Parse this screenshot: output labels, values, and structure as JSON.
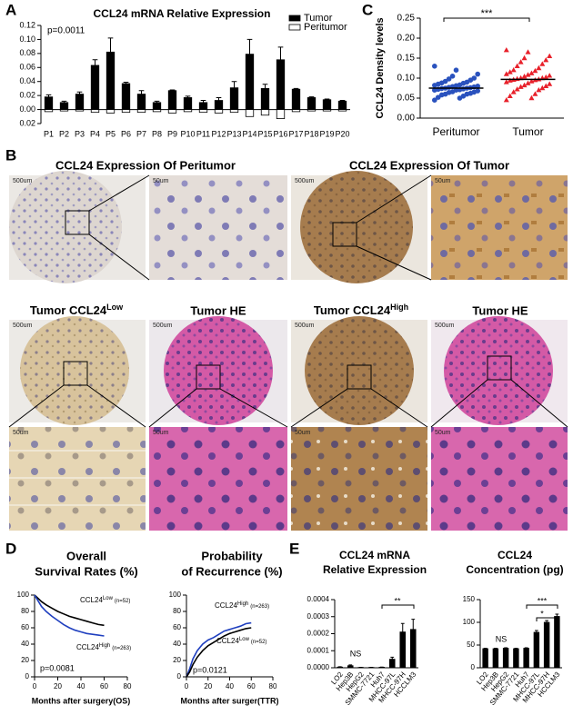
{
  "figure": {
    "panel_labels": [
      "A",
      "B",
      "C",
      "D",
      "E"
    ]
  },
  "histology": {
    "titles": [
      "CCL24 Expression Of Peritumor",
      "CCL24 Expression Of Tumor",
      {
        "text": "Tumor CCL24",
        "sup": "Low"
      },
      "Tumor HE",
      {
        "text": "Tumor CCL24",
        "sup": "High"
      },
      "Tumor HE"
    ],
    "scale_large": "500um",
    "scale_small": "50um"
  },
  "chart_data": [
    {
      "type": "bar",
      "title": "CCL24 mRNA Relative Expression",
      "annotations": [
        "p=0.0011"
      ],
      "categories": [
        "P1",
        "P2",
        "P3",
        "P4",
        "P5",
        "P6",
        "P7",
        "P8",
        "P9",
        "P10",
        "P11",
        "P12",
        "P13",
        "P14",
        "P15",
        "P16",
        "P17",
        "P18",
        "P19",
        "P20"
      ],
      "series": [
        {
          "name": "Tumor",
          "color": "#000000",
          "values": [
            0.018,
            0.01,
            0.022,
            0.063,
            0.082,
            0.037,
            0.022,
            0.01,
            0.027,
            0.017,
            0.01,
            0.013,
            0.031,
            0.079,
            0.03,
            0.071,
            0.029,
            0.017,
            0.014,
            0.012
          ],
          "errors": [
            0.003,
            0.002,
            0.003,
            0.008,
            0.02,
            0.002,
            0.005,
            0.002,
            0.001,
            0.002,
            0.003,
            0.004,
            0.009,
            0.021,
            0.006,
            0.018,
            0.001,
            0.001,
            0.001,
            0.001
          ]
        },
        {
          "name": "Peritumor",
          "color": "#ffffff",
          "values": [
            -0.003,
            -0.002,
            -0.002,
            -0.004,
            -0.005,
            -0.004,
            -0.004,
            -0.003,
            -0.005,
            -0.003,
            -0.004,
            -0.005,
            -0.004,
            -0.01,
            -0.008,
            -0.013,
            -0.003,
            -0.002,
            -0.002,
            -0.002
          ]
        }
      ],
      "legend": "upper right",
      "ylim": [
        -0.02,
        0.12
      ],
      "yticks": [
        {
          "value": -0.02,
          "label": "0.02"
        },
        {
          "value": 0,
          "label": "0.00"
        },
        {
          "value": 0.02,
          "label": "0.02"
        },
        {
          "value": 0.04,
          "label": "0.04"
        },
        {
          "value": 0.06,
          "label": "0.06"
        },
        {
          "value": 0.08,
          "label": "0.08"
        },
        {
          "value": 0.1,
          "label": "0.10"
        },
        {
          "value": 0.12,
          "label": "0.12"
        }
      ]
    },
    {
      "type": "strip",
      "ylabel": "CCL24 Density levels",
      "annotations": [
        "***"
      ],
      "categories": [
        "Peritumor",
        "Tumor"
      ],
      "groups": [
        {
          "color": "#2a52be",
          "marker": "circle",
          "mean": 0.075,
          "values": [
            0.045,
            0.05,
            0.052,
            0.055,
            0.058,
            0.06,
            0.06,
            0.062,
            0.064,
            0.065,
            0.066,
            0.068,
            0.07,
            0.07,
            0.071,
            0.072,
            0.073,
            0.074,
            0.075,
            0.075,
            0.076,
            0.077,
            0.078,
            0.079,
            0.08,
            0.081,
            0.082,
            0.083,
            0.085,
            0.087,
            0.088,
            0.09,
            0.092,
            0.095,
            0.098,
            0.1,
            0.105,
            0.11,
            0.12,
            0.13
          ]
        },
        {
          "color": "#e8202a",
          "marker": "triangle",
          "mean": 0.097,
          "values": [
            0.045,
            0.05,
            0.055,
            0.06,
            0.065,
            0.07,
            0.072,
            0.075,
            0.078,
            0.08,
            0.082,
            0.085,
            0.087,
            0.09,
            0.092,
            0.094,
            0.095,
            0.096,
            0.097,
            0.098,
            0.1,
            0.1,
            0.102,
            0.104,
            0.106,
            0.108,
            0.11,
            0.112,
            0.115,
            0.118,
            0.12,
            0.125,
            0.13,
            0.135,
            0.14,
            0.145,
            0.15,
            0.155,
            0.165,
            0.17
          ]
        }
      ],
      "ylim": [
        0,
        0.25
      ],
      "yticks": [
        {
          "value": 0,
          "label": "0.00"
        },
        {
          "value": 0.05,
          "label": "0.05"
        },
        {
          "value": 0.1,
          "label": "0.10"
        },
        {
          "value": 0.15,
          "label": "0.15"
        },
        {
          "value": 0.2,
          "label": "0.20"
        },
        {
          "value": 0.25,
          "label": "0.25"
        }
      ]
    },
    {
      "type": "line",
      "title": [
        "Overall",
        "Survival Rates (%)"
      ],
      "xlabel": "Months after surgery(OS)",
      "annotations": [
        "p=0.0081"
      ],
      "series": [
        {
          "name": "CCL24",
          "superscript": "Low",
          "n": "(n=52)",
          "color": "#000000",
          "x": [
            0,
            3,
            6,
            10,
            15,
            20,
            25,
            30,
            35,
            40,
            45,
            50,
            55,
            60
          ],
          "values": [
            100,
            96,
            92,
            88,
            84,
            80,
            77,
            74,
            72,
            70,
            68,
            66,
            64,
            63
          ]
        },
        {
          "name": "CCL24",
          "superscript": "High",
          "n": "(n=263)",
          "color": "#1f3fbf",
          "x": [
            0,
            3,
            6,
            10,
            15,
            20,
            25,
            30,
            35,
            40,
            45,
            50,
            55,
            60
          ],
          "values": [
            100,
            93,
            86,
            80,
            74,
            69,
            64,
            60,
            57,
            55,
            53,
            52,
            51,
            50
          ]
        }
      ],
      "xlim": [
        0,
        80
      ],
      "xticks": [
        0,
        20,
        40,
        60,
        80
      ],
      "ylim": [
        0,
        100
      ],
      "yticks": [
        0,
        20,
        40,
        60,
        80,
        100
      ]
    },
    {
      "type": "line",
      "title": [
        "Probability",
        "of Recurrence (%)"
      ],
      "xlabel": "Months after surger(TTR)",
      "annotations": [
        "p=0.0121"
      ],
      "series": [
        {
          "name": "CCL24",
          "superscript": "High",
          "n": "(n=263)",
          "color": "#1f3fbf",
          "x": [
            0,
            3,
            6,
            10,
            15,
            20,
            25,
            30,
            35,
            40,
            45,
            50,
            55,
            60
          ],
          "values": [
            0,
            10,
            22,
            32,
            40,
            45,
            48,
            52,
            56,
            58,
            60,
            62,
            65,
            66
          ]
        },
        {
          "name": "CCL24",
          "superscript": "Low",
          "n": "(n=52)",
          "color": "#000000",
          "x": [
            0,
            3,
            6,
            10,
            15,
            20,
            25,
            30,
            35,
            40,
            45,
            50,
            55,
            60
          ],
          "values": [
            0,
            6,
            15,
            24,
            32,
            38,
            42,
            46,
            50,
            53,
            55,
            57,
            59,
            60
          ]
        }
      ],
      "xlim": [
        0,
        80
      ],
      "xticks": [
        0,
        20,
        40,
        60,
        80
      ],
      "ylim": [
        0,
        100
      ],
      "yticks": [
        0,
        20,
        40,
        60,
        80,
        100
      ]
    },
    {
      "type": "bar",
      "title": [
        "CCL24 mRNA",
        "Relative Expression"
      ],
      "annotations": [
        "NS",
        "**"
      ],
      "categories": [
        "LO2",
        "Hep3B",
        "HepG2",
        "SMMC-7721",
        "Huh7",
        "MHCC-97L",
        "MHCC-97H",
        "HCCLM3"
      ],
      "series": [
        {
          "color": "#000000",
          "values": [
            4e-06,
            1.2e-05,
            2e-06,
            2e-06,
            3e-06,
            5e-05,
            0.00021,
            0.000225
          ],
          "errors": [
            2e-06,
            5e-06,
            1e-06,
            1e-06,
            1e-06,
            1.2e-05,
            5e-05,
            6e-05
          ]
        }
      ],
      "ylim": [
        0,
        0.0004
      ],
      "yticks": [
        {
          "value": 0,
          "label": "0.0000"
        },
        {
          "value": 0.0001,
          "label": "0.0001"
        },
        {
          "value": 0.0002,
          "label": "0.0002"
        },
        {
          "value": 0.0003,
          "label": "0.0003"
        },
        {
          "value": 0.0004,
          "label": "0.0004"
        }
      ]
    },
    {
      "type": "bar",
      "title": [
        "CCL24",
        "Concentration (pg)"
      ],
      "annotations": [
        "NS",
        "***",
        "*"
      ],
      "categories": [
        "LO2",
        "Hep3B",
        "HepG2",
        "SMMC-7721",
        "Huh7",
        "MHCC-97L",
        "MHCC-97H",
        "HCCLM3"
      ],
      "series": [
        {
          "color": "#000000",
          "values": [
            42,
            42,
            43,
            42,
            43,
            78,
            100,
            113
          ],
          "errors": [
            1,
            1,
            1,
            1,
            1,
            4,
            4,
            5
          ]
        }
      ],
      "ylim": [
        0,
        150
      ],
      "yticks": [
        0,
        50,
        100,
        150
      ]
    }
  ]
}
